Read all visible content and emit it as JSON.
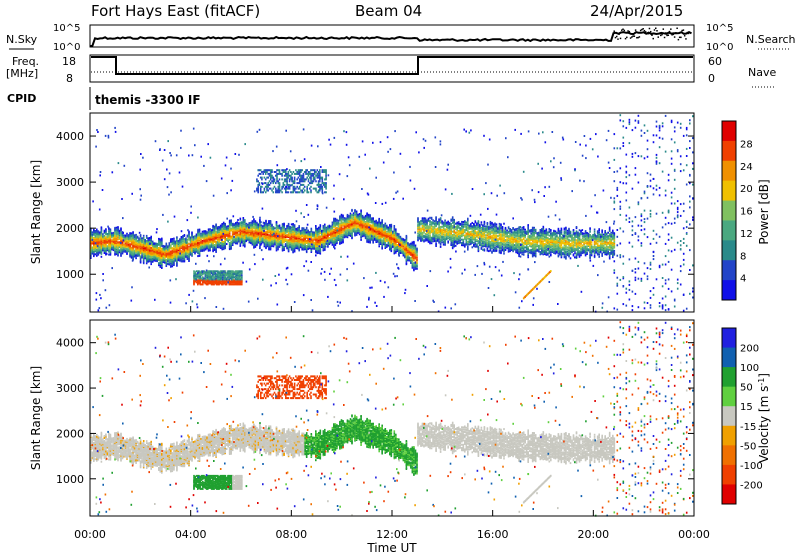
{
  "header": {
    "station": "Fort Hays East (fitACF)",
    "beam": "Beam 04",
    "date": "24/Apr/2015"
  },
  "status": {
    "nsky_label": "N.Sky",
    "nsearch_label": "N.Search",
    "noise_ticks": [
      "10^5",
      "10^0"
    ],
    "noise_ticks_right": [
      "10^5",
      "10^0"
    ],
    "freq_label": "Freq.",
    "freq_unit": "[MHz]",
    "freq_ticks": [
      "18",
      "8"
    ],
    "nave_label": "Nave",
    "nave_ticks": [
      "60",
      "0"
    ],
    "cpid_label": "CPID",
    "cpid_value": "themis -3300 IF"
  },
  "colors": {
    "power": [
      "#1010e8",
      "#2244c8",
      "#2a8a8a",
      "#4aa880",
      "#80c060",
      "#f0c000",
      "#f09000",
      "#f04000",
      "#e00000"
    ],
    "velocity": [
      "#2020e0",
      "#1060b0",
      "#20a030",
      "#60d040",
      "#c8c8c0",
      "#f0a000",
      "#f07000",
      "#f04000",
      "#e00000"
    ]
  },
  "chart_data": [
    {
      "type": "heatmap",
      "panel": "power",
      "ylabel": "Slant Range [km]",
      "yticks": [
        "4000",
        "3000",
        "2000",
        "1000"
      ],
      "ylim": [
        180,
        4500
      ],
      "xlim_hours": [
        0,
        24
      ],
      "colorbar_label": "Power [dB]",
      "colorbar_ticks": [
        "28",
        "24",
        "20",
        "16",
        "12",
        "8",
        "4"
      ],
      "colorbar_range": [
        0,
        32
      ],
      "features": [
        {
          "desc": "main band",
          "t": [
            0.0,
            1.0,
            3.0,
            4.5,
            6.0,
            7.5,
            9.0,
            10.5,
            12.0,
            13.0
          ],
          "range_km": [
            1700,
            1750,
            1450,
            1750,
            1950,
            1850,
            1750,
            2150,
            1800,
            1350
          ]
        },
        {
          "desc": "post-13UT band",
          "t": [
            13.0,
            15.0,
            17.0,
            19.0,
            20.8
          ],
          "range_km": [
            2000,
            1900,
            1750,
            1700,
            1700
          ]
        },
        {
          "desc": "near-range patch",
          "t": [
            4.1,
            6.0
          ],
          "range_km": [
            800,
            1100
          ]
        },
        {
          "desc": "diagonal echo",
          "t": [
            17.2,
            18.3
          ],
          "range_km": [
            500,
            1100
          ]
        }
      ]
    },
    {
      "type": "heatmap",
      "panel": "velocity",
      "ylabel": "Slant Range [km]",
      "yticks": [
        "4000",
        "3000",
        "2000",
        "1000"
      ],
      "ylim": [
        180,
        4500
      ],
      "xlim_hours": [
        0,
        24
      ],
      "colorbar_label": "Velocity [m s^-1]",
      "colorbar_ticks": [
        "200",
        "100",
        "50",
        "15",
        "-15",
        "-50",
        "-100",
        "-200"
      ],
      "colorbar_range": [
        -250,
        250
      ],
      "features": [
        {
          "desc": "red patch",
          "t": [
            6.6,
            9.4
          ],
          "range_km": [
            2800,
            3300
          ],
          "velocity": -200
        },
        {
          "desc": "green arc",
          "t": [
            8.5,
            13.0
          ],
          "range_km": [
            1700,
            2300
          ],
          "velocity": 60
        },
        {
          "desc": "green low patch",
          "t": [
            4.1,
            5.6
          ],
          "range_km": [
            850,
            1000
          ],
          "velocity": 60
        },
        {
          "desc": "ground scatter",
          "t": [
            13.0,
            20.8
          ],
          "range_km": [
            1500,
            2400
          ],
          "velocity": 0
        }
      ]
    }
  ],
  "xaxis": {
    "ticks": [
      "00:00",
      "04:00",
      "08:00",
      "12:00",
      "16:00",
      "20:00",
      "00:00"
    ],
    "label": "Time UT"
  }
}
